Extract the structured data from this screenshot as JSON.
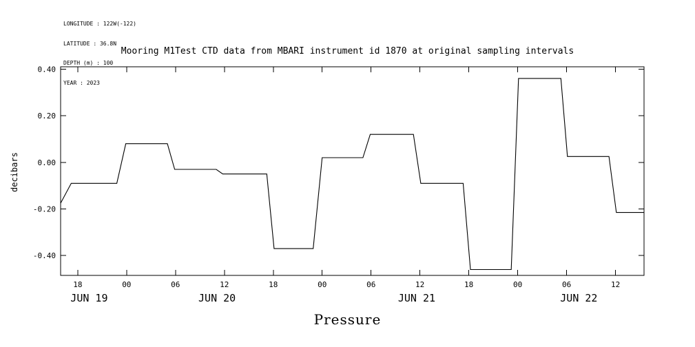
{
  "header_info": {
    "longitude": "LONGITUDE : 122W(-122)",
    "latitude": "LATITUDE : 36.8N",
    "depth": "DEPTH (m) : 100",
    "year": "YEAR : 2023"
  },
  "colors": {
    "background": "#ffffff",
    "foreground": "#000000"
  },
  "chart_data": {
    "type": "line",
    "title": "Mooring M1Test CTD data from MBARI instrument id 1870 at original sampling intervals",
    "ylabel": "decibars",
    "bottom_label": "Pressure",
    "x_axis_description": "time in hours, JUN 19 through JUN 22, 2023, ticks every 6 hours",
    "xlim": [
      15.9,
      87.5
    ],
    "ylim": [
      -0.485,
      0.41
    ],
    "grid": false,
    "legend": "none",
    "y_ticks": {
      "values": [
        0.4,
        0.2,
        0.0,
        -0.2,
        -0.4
      ],
      "labels": [
        "0.40",
        "0.20",
        "0.00",
        "-0.20",
        "-0.40"
      ]
    },
    "x_ticks": {
      "hours": [
        18,
        24,
        30,
        36,
        42,
        48,
        54,
        60,
        66,
        72,
        78,
        84
      ],
      "labels": [
        "18",
        "00",
        "06",
        "12",
        "18",
        "00",
        "06",
        "12",
        "18",
        "00",
        "06",
        "12"
      ]
    },
    "date_labels": [
      {
        "label": "JUN 19",
        "hour": 19.4
      },
      {
        "label": "JUN 20",
        "hour": 35.1
      },
      {
        "label": "JUN 21",
        "hour": 59.6
      },
      {
        "label": "JUN 22",
        "hour": 79.5
      }
    ],
    "series": [
      {
        "name": "Pressure",
        "color": "#000000",
        "points": [
          [
            15.9,
            -0.175
          ],
          [
            17.2,
            -0.09
          ],
          [
            22.8,
            -0.09
          ],
          [
            23.9,
            0.08
          ],
          [
            29.0,
            0.08
          ],
          [
            29.9,
            -0.03
          ],
          [
            35.0,
            -0.03
          ],
          [
            35.8,
            -0.05
          ],
          [
            41.2,
            -0.05
          ],
          [
            42.1,
            -0.37
          ],
          [
            46.9,
            -0.37
          ],
          [
            48.0,
            0.02
          ],
          [
            53.0,
            0.02
          ],
          [
            53.9,
            0.12
          ],
          [
            59.2,
            0.12
          ],
          [
            60.1,
            -0.09
          ],
          [
            65.3,
            -0.09
          ],
          [
            66.2,
            -0.46
          ],
          [
            71.2,
            -0.46
          ],
          [
            72.1,
            0.36
          ],
          [
            77.3,
            0.36
          ],
          [
            78.1,
            0.025
          ],
          [
            83.2,
            0.025
          ],
          [
            84.1,
            -0.215
          ],
          [
            87.5,
            -0.215
          ]
        ]
      }
    ]
  }
}
